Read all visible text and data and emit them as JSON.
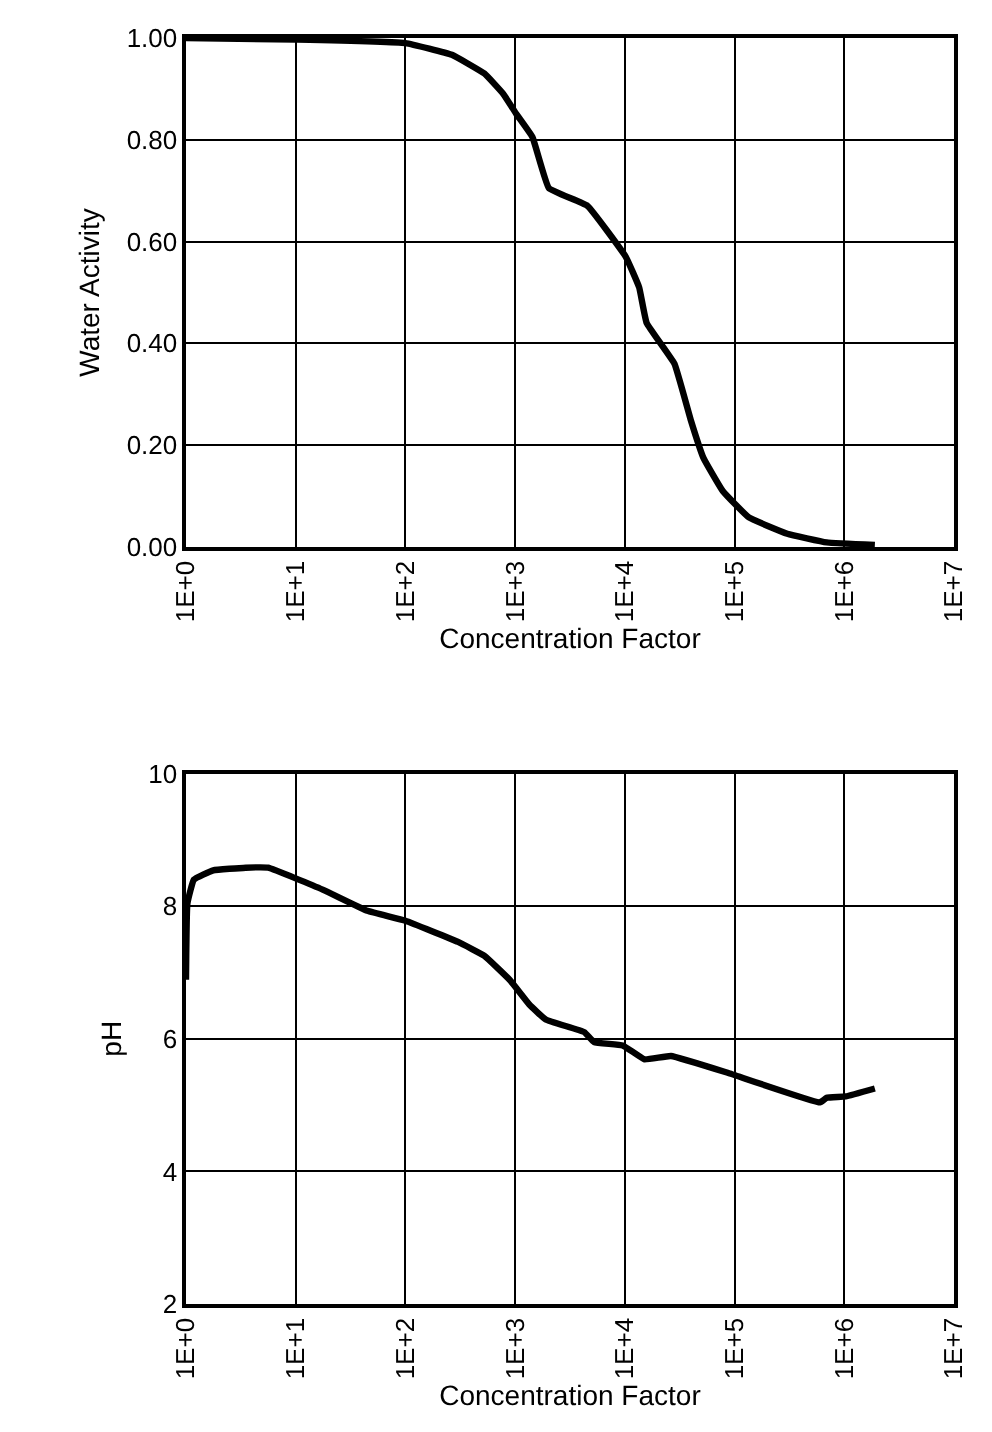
{
  "chart_data": [
    {
      "type": "line",
      "xlabel": "Concentration Factor",
      "ylabel": "Water Activity",
      "log": "x",
      "grid": true,
      "marker": "none",
      "line_style": "solid",
      "xlim": [
        1,
        10000000
      ],
      "xticks": [
        {
          "value": 1,
          "label": "1E+0"
        },
        {
          "value": 10,
          "label": "1E+1"
        },
        {
          "value": 100,
          "label": "1E+2"
        },
        {
          "value": 1000,
          "label": "1E+3"
        },
        {
          "value": 10000,
          "label": "1E+4"
        },
        {
          "value": 100000,
          "label": "1E+5"
        },
        {
          "value": 1000000,
          "label": "1E+6"
        },
        {
          "value": 10000000,
          "label": "1E+7"
        }
      ],
      "ylim": [
        0,
        1
      ],
      "yticks": [
        {
          "value": 0,
          "label": "0.00"
        },
        {
          "value": 0.2,
          "label": "0.20"
        },
        {
          "value": 0.4,
          "label": "0.40"
        },
        {
          "value": 0.6,
          "label": "0.60"
        },
        {
          "value": 0.8,
          "label": "0.80"
        },
        {
          "value": 1,
          "label": "1.00"
        }
      ],
      "x": [
        1,
        10,
        100,
        265,
        525,
        780,
        1030,
        1440,
        2030,
        4570,
        10200,
        13500,
        15800,
        28300,
        39800,
        52000,
        78000,
        135000,
        302000,
        690000,
        1900000
      ],
      "series": [
        {
          "color": "#000000",
          "values": [
            1.0,
            0.997,
            0.99,
            0.967,
            0.93,
            0.89,
            0.85,
            0.805,
            0.705,
            0.67,
            0.57,
            0.51,
            0.44,
            0.36,
            0.25,
            0.175,
            0.11,
            0.058,
            0.026,
            0.009,
            0.004
          ]
        }
      ]
    },
    {
      "type": "line",
      "xlabel": "Concentration Factor",
      "ylabel": "pH",
      "log": "x",
      "grid": true,
      "marker": "none",
      "line_style": "solid",
      "xlim": [
        1,
        10000000
      ],
      "xticks": [
        {
          "value": 1,
          "label": "1E+0"
        },
        {
          "value": 10,
          "label": "1E+1"
        },
        {
          "value": 100,
          "label": "1E+2"
        },
        {
          "value": 1000,
          "label": "1E+3"
        },
        {
          "value": 10000,
          "label": "1E+4"
        },
        {
          "value": 100000,
          "label": "1E+5"
        },
        {
          "value": 1000000,
          "label": "1E+6"
        },
        {
          "value": 10000000,
          "label": "1E+7"
        }
      ],
      "ylim": [
        2,
        10
      ],
      "yticks": [
        2,
        4,
        6,
        8,
        10
      ],
      "x": [
        1,
        1.03,
        1.18,
        1.77,
        3.5,
        5.6,
        17.6,
        45,
        100,
        302,
        525,
        890,
        1340,
        1900,
        4270,
        5250,
        9550,
        15100,
        26300,
        89000,
        600000,
        690000,
        1030000,
        1900000
      ],
      "series": [
        {
          "color": "#000000",
          "values": [
            6.89,
            8.04,
            8.4,
            8.54,
            8.58,
            8.58,
            8.25,
            7.93,
            7.78,
            7.46,
            7.25,
            6.89,
            6.52,
            6.29,
            6.1,
            5.95,
            5.9,
            5.69,
            5.74,
            5.48,
            5.04,
            5.11,
            5.13,
            5.25
          ]
        }
      ]
    }
  ]
}
